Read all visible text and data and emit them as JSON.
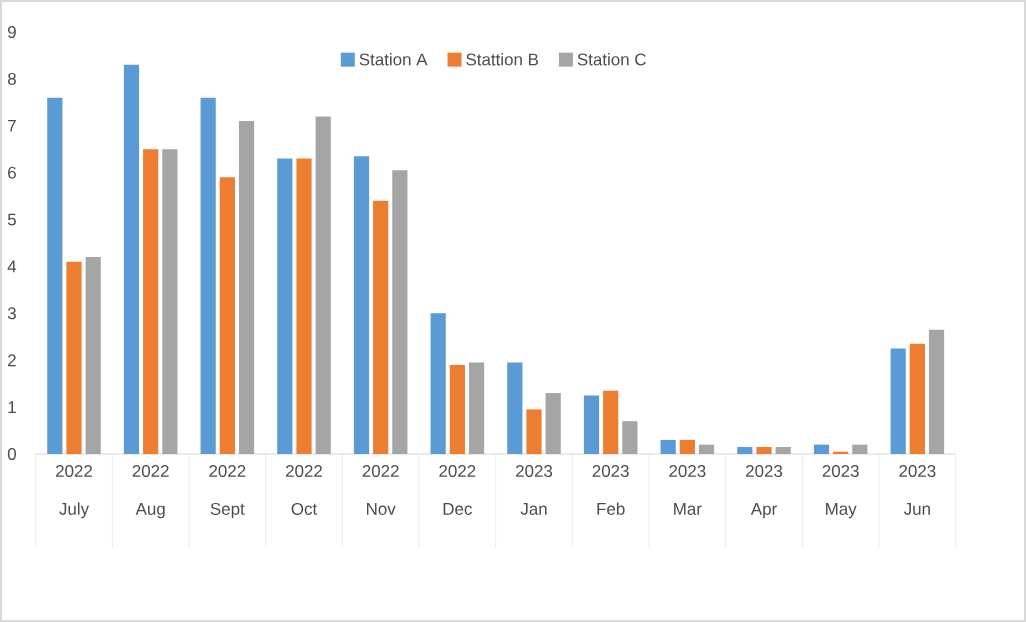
{
  "chart_data": {
    "type": "bar",
    "categories": [
      "2022 July",
      "2022 Aug",
      "2022 Sept",
      "2022 Oct",
      "2022 Nov",
      "2022 Dec",
      "2023 Jan",
      "2023 Feb",
      "2023 Mar",
      "2023 Apr",
      "2023 May",
      "2023 Jun"
    ],
    "series": [
      {
        "name": "Station A",
        "color": "#5b9bd5",
        "values": [
          7.6,
          8.3,
          7.6,
          6.3,
          6.35,
          3.0,
          1.95,
          1.25,
          0.3,
          0.15,
          0.2,
          2.25
        ]
      },
      {
        "name": "Stattion B",
        "color": "#ed7d31",
        "values": [
          4.1,
          6.5,
          5.9,
          6.3,
          5.4,
          1.9,
          0.95,
          1.35,
          0.3,
          0.15,
          0.05,
          2.35
        ]
      },
      {
        "name": "Station C",
        "color": "#a5a5a5",
        "values": [
          4.2,
          6.5,
          7.1,
          7.2,
          6.05,
          1.95,
          1.3,
          0.7,
          0.2,
          0.15,
          0.2,
          2.65
        ]
      }
    ],
    "ylim": [
      0,
      9
    ],
    "yticks": [
      0,
      1,
      2,
      3,
      4,
      5,
      6,
      7,
      8,
      9
    ],
    "grid": false,
    "legend": "top"
  }
}
